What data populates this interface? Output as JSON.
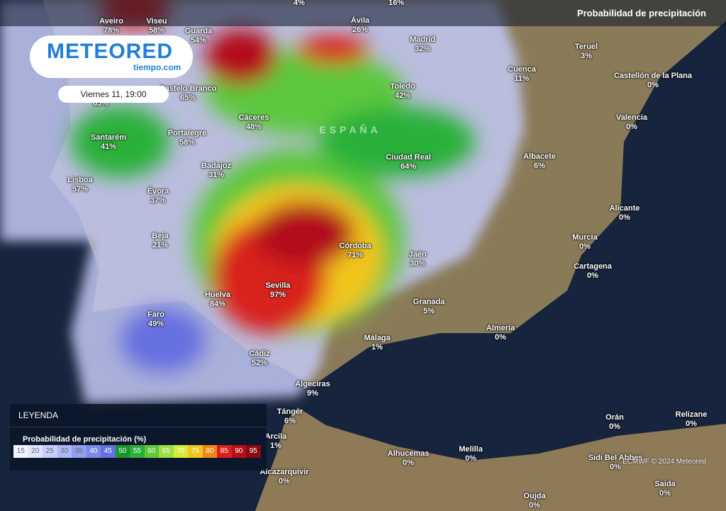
{
  "header": {
    "title": "Probabilidad de precipitación"
  },
  "logo": {
    "brand": "METEORED",
    "site": "tiempo.com"
  },
  "date": "Viernes 11, 19:00",
  "country_label": "ESPAÑA",
  "cities": [
    {
      "value": "4%"
    },
    {
      "value": "16%"
    },
    {
      "name": "Aveiro",
      "value": "78%"
    },
    {
      "name": "Viseu",
      "value": "58%"
    },
    {
      "name": "Guarda",
      "value": "54%"
    },
    {
      "name": "Ávila",
      "value": "26%"
    },
    {
      "name": "Madrid",
      "value": "32%"
    },
    {
      "name": "Teruel",
      "value": "3%"
    },
    {
      "name": "Cuenca",
      "value": "11%"
    },
    {
      "name": "Castellón de la Plana",
      "value": "0%"
    },
    {
      "name": "Castelo Branco",
      "value": "65%"
    },
    {
      "value": "65%"
    },
    {
      "name": "Toledo",
      "value": "42%"
    },
    {
      "name": "Cáceres",
      "value": "48%"
    },
    {
      "name": "Valencia",
      "value": "0%"
    },
    {
      "name": "Santarém",
      "value": "41%"
    },
    {
      "name": "Portalegre",
      "value": "58%"
    },
    {
      "name": "Albacete",
      "value": "6%"
    },
    {
      "name": "Ciudad Real",
      "value": "64%"
    },
    {
      "name": "Badajoz",
      "value": "31%"
    },
    {
      "name": "Lisboa",
      "value": "57%"
    },
    {
      "name": "Évora",
      "value": "37%"
    },
    {
      "name": "Alicante",
      "value": "0%"
    },
    {
      "name": "Murcia",
      "value": "0%"
    },
    {
      "name": "Beja",
      "value": "21%"
    },
    {
      "name": "Córdoba",
      "value": "71%"
    },
    {
      "name": "Jaén",
      "value": "30%"
    },
    {
      "name": "Cartagena",
      "value": "0%"
    },
    {
      "name": "Sevilla",
      "value": "97%"
    },
    {
      "name": "Huelva",
      "value": "84%"
    },
    {
      "name": "Granada",
      "value": "5%"
    },
    {
      "name": "Faro",
      "value": "49%"
    },
    {
      "name": "Almería",
      "value": "0%"
    },
    {
      "name": "Málaga",
      "value": "1%"
    },
    {
      "name": "Cádiz",
      "value": "52%"
    },
    {
      "name": "Algeciras",
      "value": "9%"
    },
    {
      "name": "Tánger",
      "value": "6%"
    },
    {
      "name": "Orán",
      "value": "0%"
    },
    {
      "name": "Relizane",
      "value": "0%"
    },
    {
      "name": "Arcila",
      "value": "1%"
    },
    {
      "name": "Alhucemas",
      "value": "0%"
    },
    {
      "name": "Melilla",
      "value": "0%"
    },
    {
      "name": "Sidi Bel Abbes",
      "value": "0%"
    },
    {
      "name": "Alcazarquivir",
      "value": "0%"
    },
    {
      "name": "Saida",
      "value": "0%"
    },
    {
      "name": "Oujda",
      "value": "0%"
    }
  ],
  "legend": {
    "title": "LEYENDA",
    "subtitle": "Probabilidad de precipitación (%)",
    "items": [
      {
        "value": 15,
        "color": "#f2f3ff"
      },
      {
        "value": 20,
        "color": "#dfe3fb"
      },
      {
        "value": 25,
        "color": "#c8cff7"
      },
      {
        "value": 30,
        "color": "#aeb8f3"
      },
      {
        "value": 35,
        "color": "#93a0ee"
      },
      {
        "value": 40,
        "color": "#7d88e8"
      },
      {
        "value": 45,
        "color": "#6670e0"
      },
      {
        "value": 50,
        "color": "#17962c"
      },
      {
        "value": 55,
        "color": "#2bb13a"
      },
      {
        "value": 60,
        "color": "#5cc83c"
      },
      {
        "value": 65,
        "color": "#9ddd48"
      },
      {
        "value": 70,
        "color": "#d7ec38"
      },
      {
        "value": 75,
        "color": "#f2c51e"
      },
      {
        "value": 80,
        "color": "#ee8914"
      },
      {
        "value": 85,
        "color": "#d8221b"
      },
      {
        "value": 90,
        "color": "#b2101a"
      },
      {
        "value": 95,
        "color": "#8a0a14"
      }
    ]
  },
  "credit": "ECMWF © 2024 Meteored"
}
